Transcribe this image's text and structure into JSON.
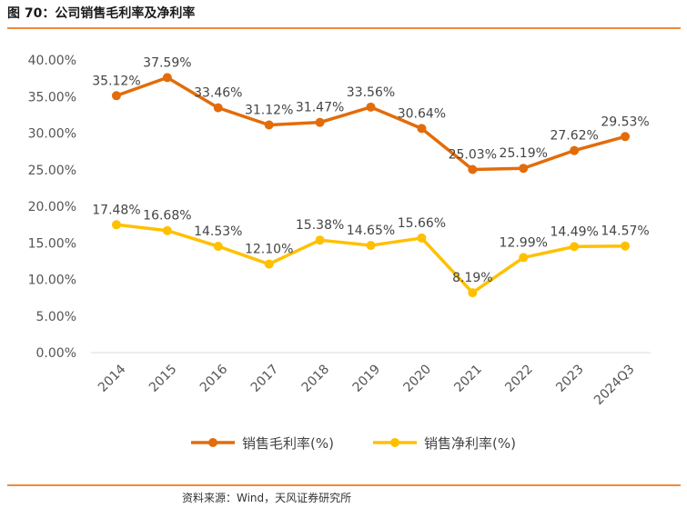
{
  "figure": {
    "title": "图 70：公司销售毛利率及净利率",
    "source": "资料来源：Wind，天风证券研究所"
  },
  "colors": {
    "series1": "#E36C0A",
    "series2": "#FFC000",
    "rule": "#f08a3c"
  },
  "chart_data": {
    "type": "line",
    "categories": [
      "2014",
      "2015",
      "2016",
      "2017",
      "2018",
      "2019",
      "2020",
      "2021",
      "2022",
      "2023",
      "2024Q3"
    ],
    "series": [
      {
        "name": "销售毛利率(%)",
        "values": [
          35.12,
          37.59,
          33.46,
          31.12,
          31.47,
          33.56,
          30.64,
          25.03,
          25.19,
          27.62,
          29.53
        ],
        "labels": [
          "35.12%",
          "37.59%",
          "33.46%",
          "31.12%",
          "31.47%",
          "33.56%",
          "30.64%",
          "25.03%",
          "25.19%",
          "27.62%",
          "29.53%"
        ]
      },
      {
        "name": "销售净利率(%)",
        "values": [
          17.48,
          16.68,
          14.53,
          12.1,
          15.38,
          14.65,
          15.66,
          8.19,
          12.99,
          14.49,
          14.57
        ],
        "labels": [
          "17.48%",
          "16.68%",
          "14.53%",
          "12.10%",
          "15.38%",
          "14.65%",
          "15.66%",
          "8.19%",
          "12.99%",
          "14.49%",
          "14.57%"
        ]
      }
    ],
    "yticks": [
      "0.00%",
      "5.00%",
      "10.00%",
      "15.00%",
      "20.00%",
      "25.00%",
      "30.00%",
      "35.00%",
      "40.00%"
    ],
    "ylim": [
      0,
      40
    ],
    "grid": false,
    "legend": "bottom"
  }
}
